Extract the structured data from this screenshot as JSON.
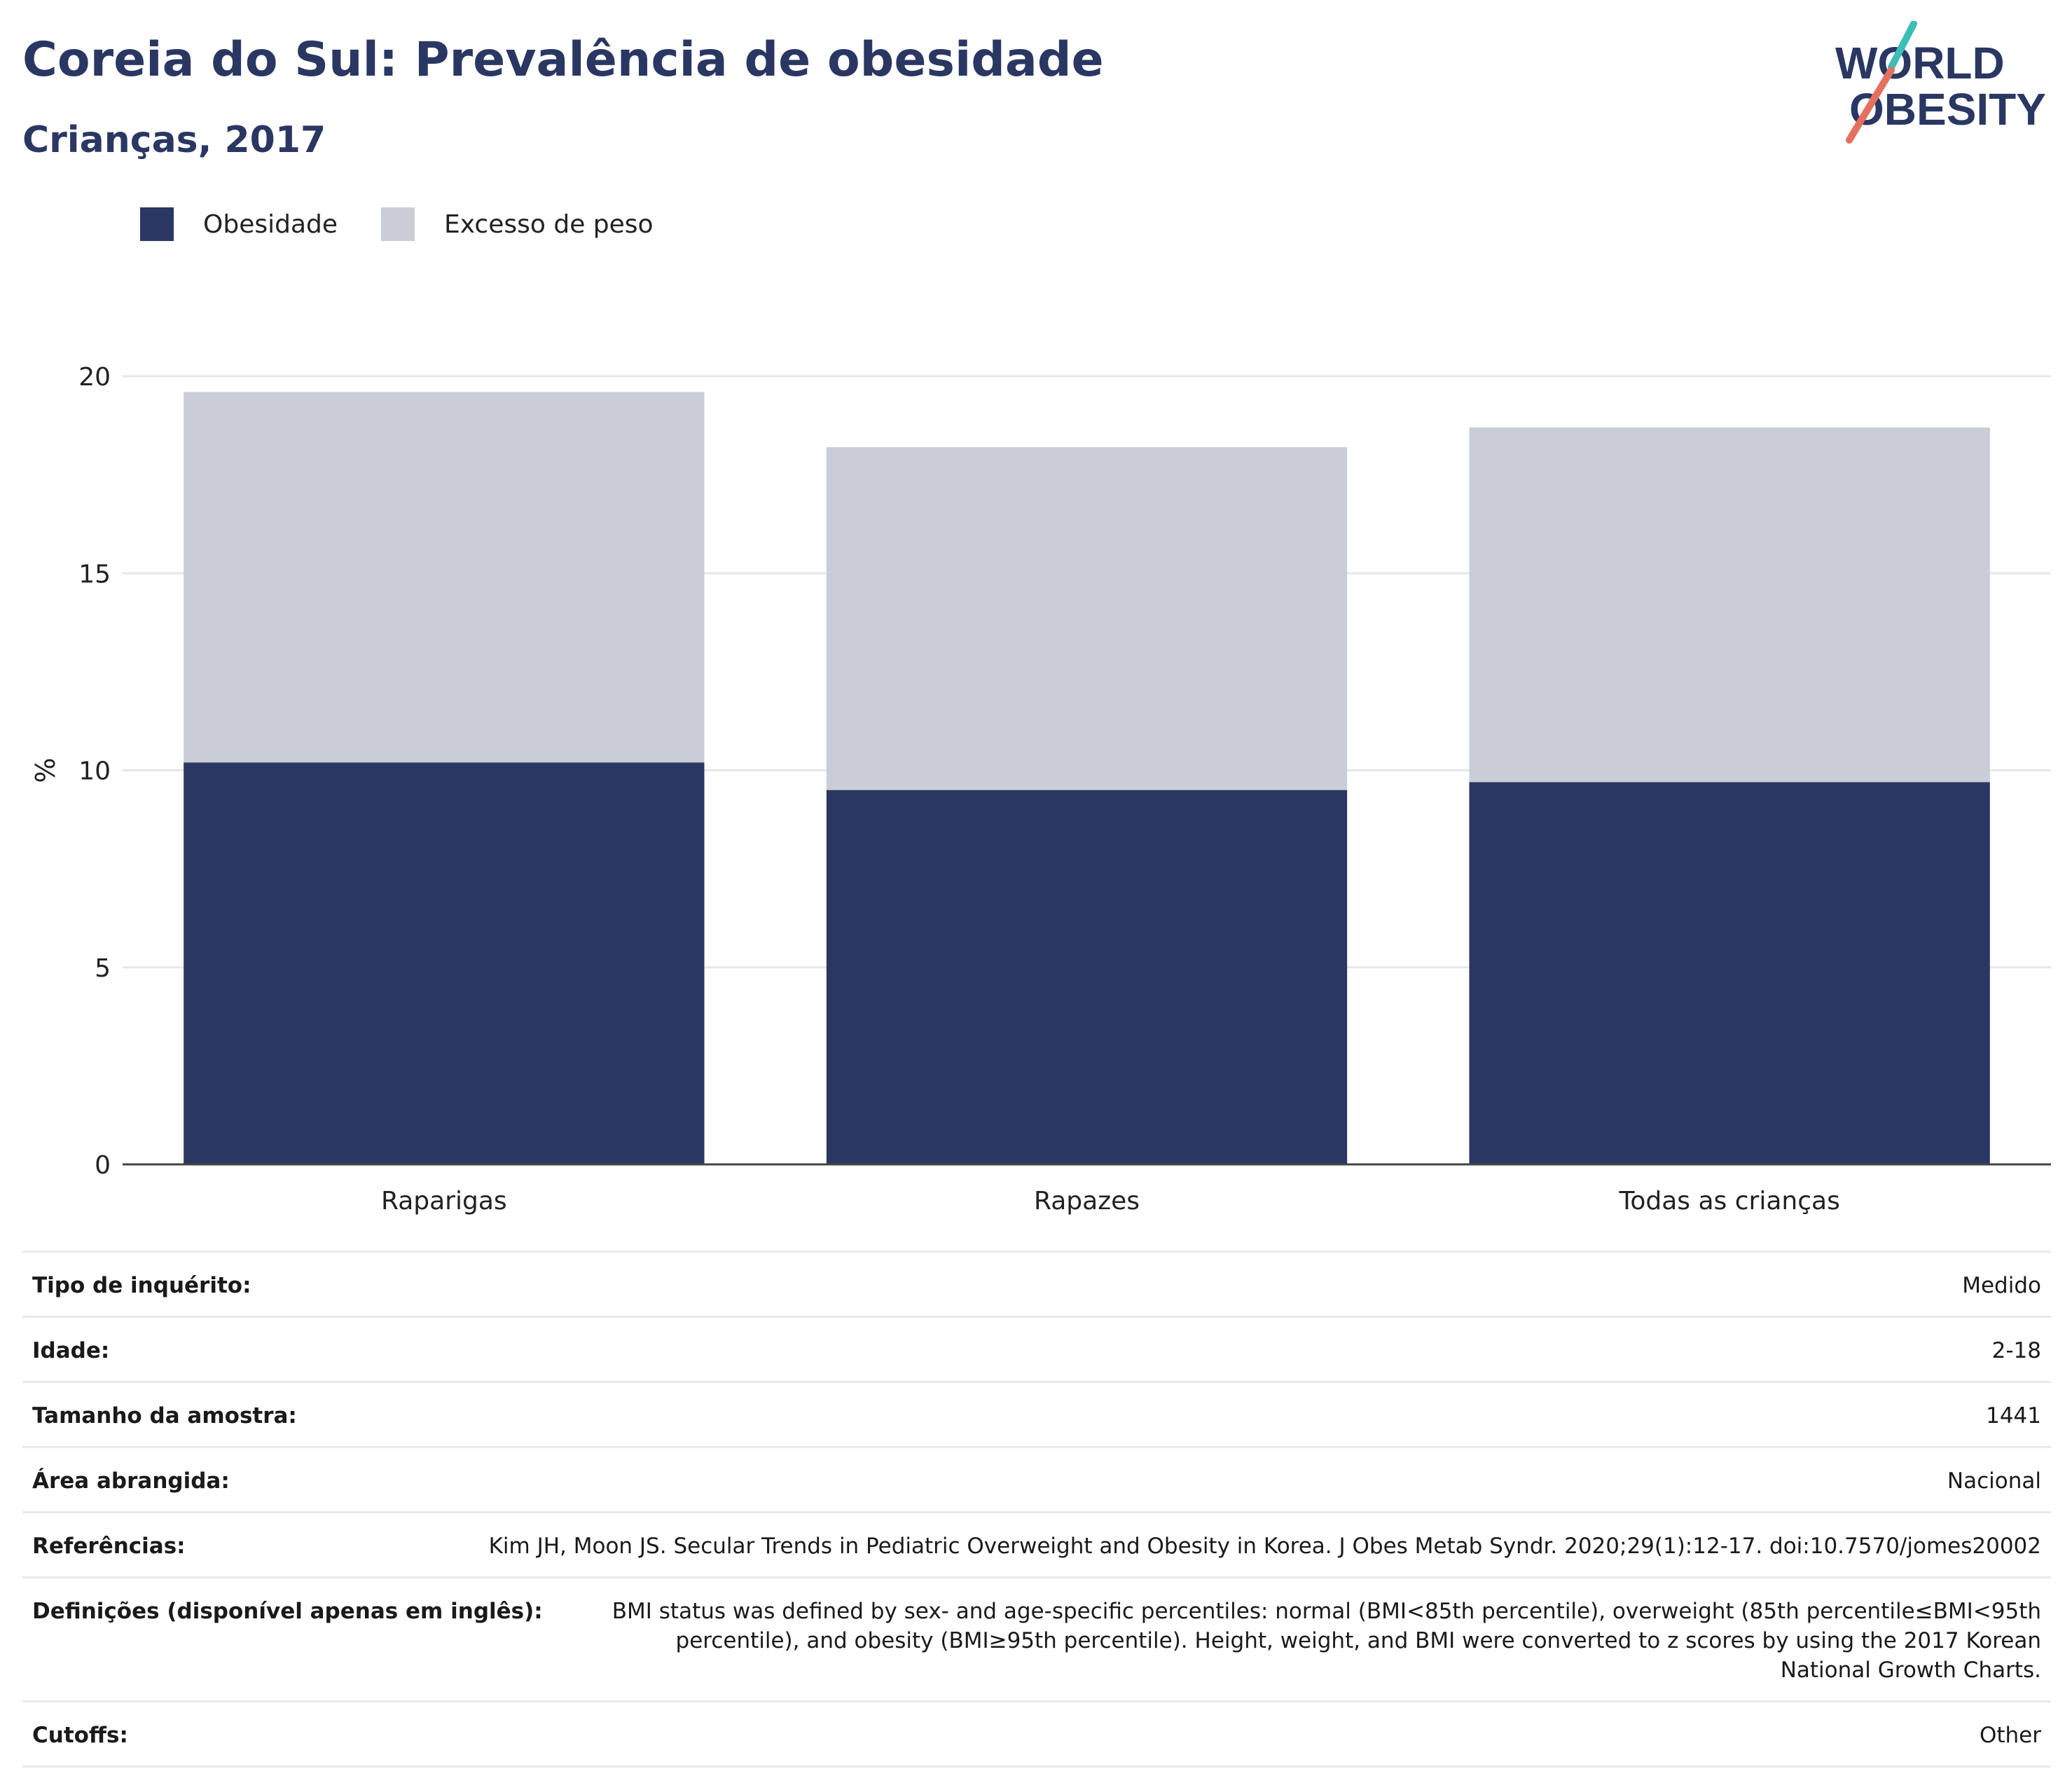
{
  "title": "Coreia do Sul: Prevalência de obesidade",
  "subtitle": "Crianças, 2017",
  "logo": {
    "line1": "WORLD",
    "line2": "OBESITY",
    "accent_teal": "#3bbdb8",
    "accent_red": "#e5705f",
    "text_color": "#2a3763"
  },
  "colors": {
    "obesity": "#2a3763",
    "overweight": "#cacdd8",
    "title": "#2a3763"
  },
  "chart_data": {
    "type": "bar",
    "stacked": true,
    "categories": [
      "Raparigas",
      "Rapazes",
      "Todas as crianças"
    ],
    "series": [
      {
        "name": "Obesidade",
        "values": [
          10.2,
          9.5,
          9.7
        ]
      },
      {
        "name": "Excesso de peso",
        "values": [
          9.4,
          8.7,
          9.0
        ]
      }
    ],
    "ylabel": "%",
    "ylim": [
      0,
      20
    ],
    "yticks": [
      0,
      5,
      10,
      15,
      20
    ],
    "grid": true,
    "legend": "top-left"
  },
  "info_table": [
    {
      "key": "Tipo de inquérito:",
      "value": "Medido"
    },
    {
      "key": "Idade:",
      "value": "2-18"
    },
    {
      "key": "Tamanho da amostra:",
      "value": "1441"
    },
    {
      "key": "Área abrangida:",
      "value": "Nacional"
    },
    {
      "key": "Referências:",
      "value": "Kim JH, Moon JS. Secular Trends in Pediatric Overweight and Obesity in Korea. J Obes Metab Syndr. 2020;29(1):12-17. doi:10.7570/jomes20002"
    },
    {
      "key": "Definições (disponível apenas em inglês):",
      "value": "BMI status was defined by sex- and age-specific percentiles: normal (BMI<85th percentile), overweight (85th percentile≤BMI<95th percentile), and obesity (BMI≥95th percentile). Height, weight, and BMI were converted to z scores by using the 2017 Korean National Growth Charts."
    },
    {
      "key": "Cutoffs:",
      "value": "Other"
    }
  ]
}
